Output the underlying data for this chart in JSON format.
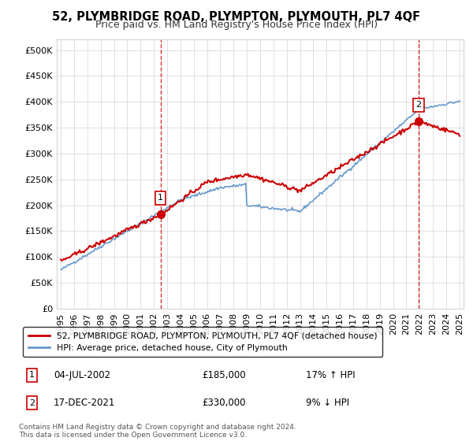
{
  "title": "52, PLYMBRIDGE ROAD, PLYMPTON, PLYMOUTH, PL7 4QF",
  "subtitle": "Price paid vs. HM Land Registry's House Price Index (HPI)",
  "sale1_date": "04-JUL-2002",
  "sale1_price": 185000,
  "sale1_pct": "17% ↑ HPI",
  "sale2_date": "17-DEC-2021",
  "sale2_price": 330000,
  "sale2_pct": "9% ↓ HPI",
  "footer": "Contains HM Land Registry data © Crown copyright and database right 2024.\nThis data is licensed under the Open Government Licence v3.0.",
  "legend1": "52, PLYMBRIDGE ROAD, PLYMPTON, PLYMOUTH, PL7 4QF (detached house)",
  "legend2": "HPI: Average price, detached house, City of Plymouth",
  "hpi_color": "#6699cc",
  "price_color": "#cc0000",
  "marker_color": "#cc0000",
  "vline_color": "#cc0000",
  "ylim": [
    0,
    520000
  ],
  "yticks": [
    0,
    50000,
    100000,
    150000,
    200000,
    250000,
    300000,
    350000,
    400000,
    450000,
    500000
  ],
  "sale1_x": 2002.5,
  "sale2_x": 2021.92
}
